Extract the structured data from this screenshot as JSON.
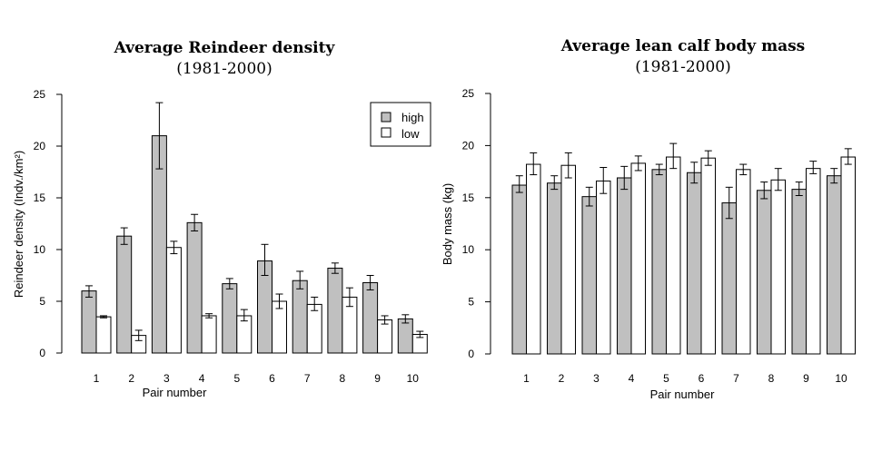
{
  "chart_data": [
    {
      "type": "bar",
      "title": "Average Reindeer density",
      "subtitle": "(1981-2000)",
      "xlabel": "Pair number",
      "ylabel": "Reindeer density (Indv./km²)",
      "ylim": [
        0,
        25
      ],
      "yticks": [
        0,
        5,
        10,
        15,
        20,
        25
      ],
      "categories": [
        "1",
        "2",
        "3",
        "4",
        "5",
        "6",
        "7",
        "8",
        "9",
        "10"
      ],
      "series": [
        {
          "name": "high",
          "color": "#c0c0c0",
          "values": [
            6.0,
            11.3,
            21.0,
            12.6,
            6.7,
            8.9,
            7.0,
            8.2,
            6.8,
            3.3
          ],
          "err_low": [
            5.4,
            10.5,
            17.8,
            11.8,
            6.2,
            7.5,
            6.2,
            7.7,
            6.1,
            2.9
          ],
          "err_high": [
            6.5,
            12.1,
            24.2,
            13.4,
            7.2,
            10.5,
            7.9,
            8.7,
            7.5,
            3.7
          ]
        },
        {
          "name": "low",
          "color": "#ffffff",
          "values": [
            3.5,
            1.7,
            10.2,
            3.6,
            3.6,
            5.0,
            4.7,
            5.4,
            3.2,
            1.8
          ],
          "err_low": [
            3.4,
            1.2,
            9.6,
            3.4,
            3.1,
            4.3,
            4.1,
            4.5,
            2.8,
            1.5
          ],
          "err_high": [
            3.6,
            2.2,
            10.8,
            3.8,
            4.2,
            5.7,
            5.4,
            6.3,
            3.6,
            2.1
          ]
        }
      ],
      "legend": {
        "position": "top-right",
        "entries": [
          "high",
          "low"
        ]
      }
    },
    {
      "type": "bar",
      "title": "Average lean calf body mass",
      "subtitle": "(1981-2000)",
      "xlabel": "Pair number",
      "ylabel": "Body mass (kg)",
      "ylim": [
        0,
        25
      ],
      "yticks": [
        0,
        5,
        10,
        15,
        20,
        25
      ],
      "categories": [
        "1",
        "2",
        "3",
        "4",
        "5",
        "6",
        "7",
        "8",
        "9",
        "10"
      ],
      "series": [
        {
          "name": "high",
          "color": "#c0c0c0",
          "values": [
            16.2,
            16.4,
            15.1,
            16.9,
            17.7,
            17.4,
            14.5,
            15.7,
            15.8,
            17.1
          ],
          "err_low": [
            15.5,
            15.8,
            14.2,
            15.8,
            17.2,
            16.4,
            13.0,
            14.9,
            15.2,
            16.4
          ],
          "err_high": [
            17.1,
            17.1,
            16.0,
            18.0,
            18.2,
            18.4,
            16.0,
            16.5,
            16.5,
            17.8
          ]
        },
        {
          "name": "low",
          "color": "#ffffff",
          "values": [
            18.2,
            18.1,
            16.6,
            18.3,
            18.9,
            18.8,
            17.7,
            16.7,
            17.8,
            18.9
          ],
          "err_low": [
            17.2,
            16.9,
            15.4,
            17.6,
            17.8,
            18.1,
            17.2,
            15.7,
            17.3,
            18.2
          ],
          "err_high": [
            19.3,
            19.3,
            17.9,
            19.0,
            20.2,
            19.5,
            18.2,
            17.8,
            18.5,
            19.7
          ]
        }
      ]
    }
  ]
}
